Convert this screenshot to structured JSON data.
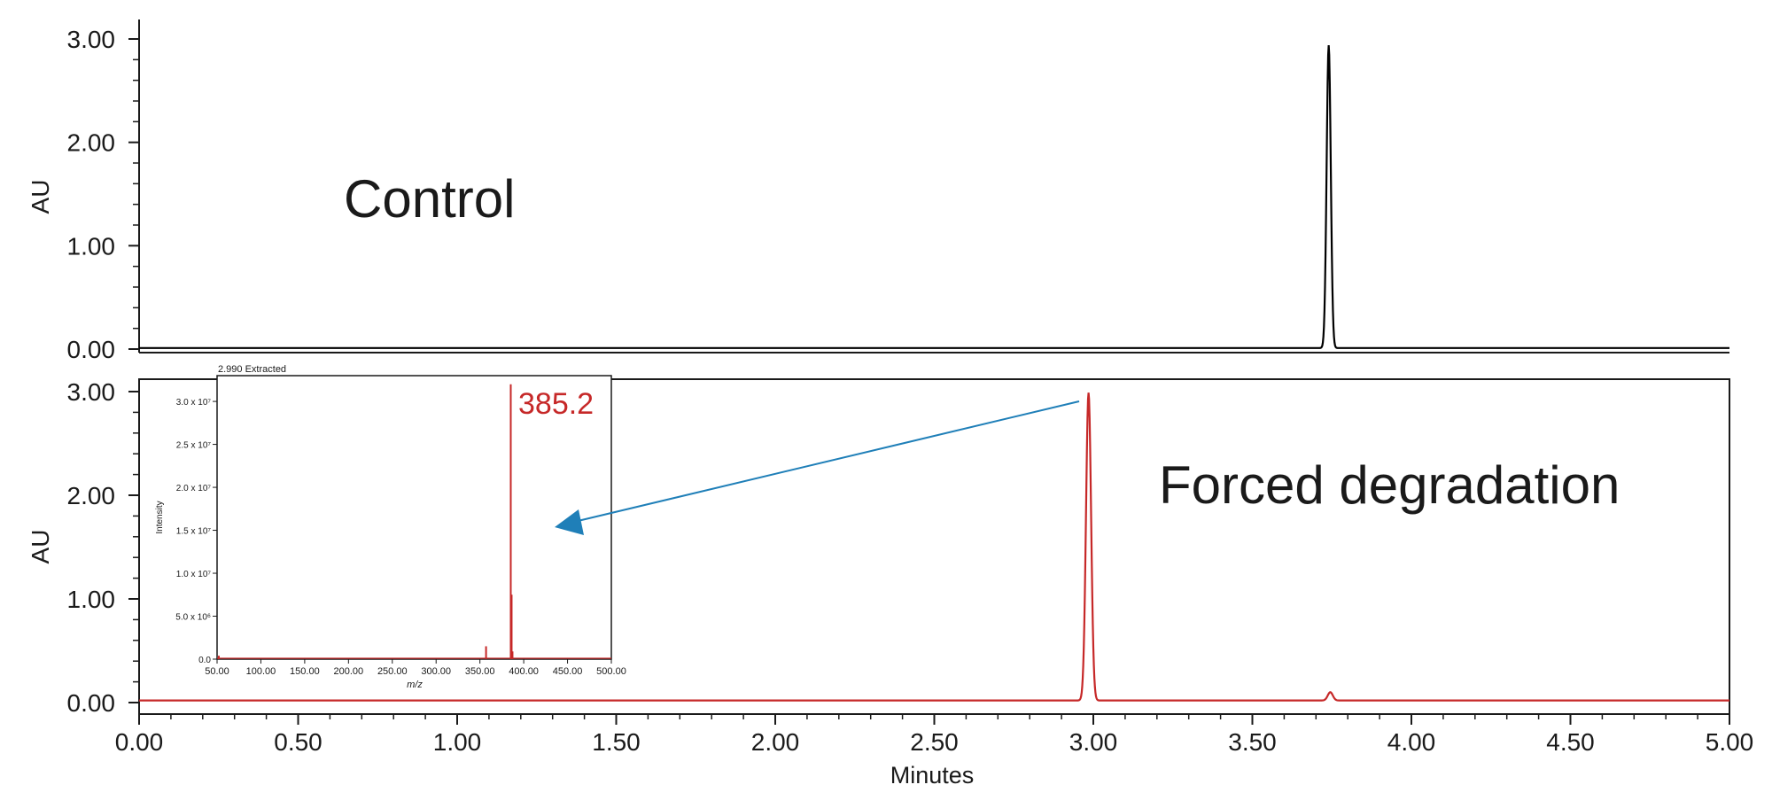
{
  "colors": {
    "control_trace": "#000000",
    "degradation_trace": "#c62828",
    "arrow": "#1f7fb8",
    "axis": "#1a1a1a"
  },
  "chart_data": [
    {
      "type": "line",
      "panel": "top",
      "title": "",
      "annotation": "Control",
      "xlabel": "",
      "ylabel": "AU",
      "xlim": [
        0,
        5.0
      ],
      "ylim": [
        0,
        3.0
      ],
      "yticks": [
        "0.00",
        "1.00",
        "2.00",
        "3.00"
      ],
      "grid": false,
      "series": [
        {
          "color": "#000000",
          "baseline": 0.01,
          "peaks": [
            {
              "rt": 3.74,
              "height": 2.93,
              "sigma": 0.0065
            }
          ]
        }
      ]
    },
    {
      "type": "line",
      "panel": "bottom",
      "title": "",
      "annotation": "Forced degradation",
      "xlabel": "Minutes",
      "ylabel": "AU",
      "xlim": [
        0,
        5.0
      ],
      "ylim": [
        0,
        3.0
      ],
      "xticks": [
        "0.00",
        "0.50",
        "1.00",
        "1.50",
        "2.00",
        "2.50",
        "3.00",
        "3.50",
        "4.00",
        "4.50",
        "5.00"
      ],
      "yticks": [
        "0.00",
        "1.00",
        "2.00",
        "3.00"
      ],
      "grid": false,
      "series": [
        {
          "color": "#c62828",
          "baseline": 0.02,
          "peaks": [
            {
              "rt": 2.985,
              "height": 2.97,
              "sigma": 0.008
            },
            {
              "rt": 3.745,
              "height": 0.08,
              "sigma": 0.008
            }
          ]
        }
      ]
    },
    {
      "type": "bar",
      "panel": "inset",
      "title": "2.990 Extracted",
      "xlabel": "m/z",
      "ylabel": "Intensity",
      "xlim": [
        50,
        500
      ],
      "ylim": [
        0,
        33000000.0
      ],
      "xticks": [
        "50.00",
        "100.00",
        "150.00",
        "200.00",
        "250.00",
        "300.00",
        "350.00",
        "400.00",
        "450.00",
        "500.00"
      ],
      "yticks": [
        "0.0",
        "5.0 x 10⁶",
        "1.0 x 10⁷",
        "1.5 x 10⁷",
        "2.0 x 10⁷",
        "2.5 x 10⁷",
        "3.0 x 10⁷"
      ],
      "peak_label": "385.2",
      "color": "#c62828",
      "sticks": [
        {
          "mz": 52,
          "intensity": 400000
        },
        {
          "mz": 357,
          "intensity": 1500000
        },
        {
          "mz": 385.2,
          "intensity": 32000000
        },
        {
          "mz": 386.2,
          "intensity": 7500000
        },
        {
          "mz": 387.2,
          "intensity": 900000
        }
      ]
    }
  ]
}
